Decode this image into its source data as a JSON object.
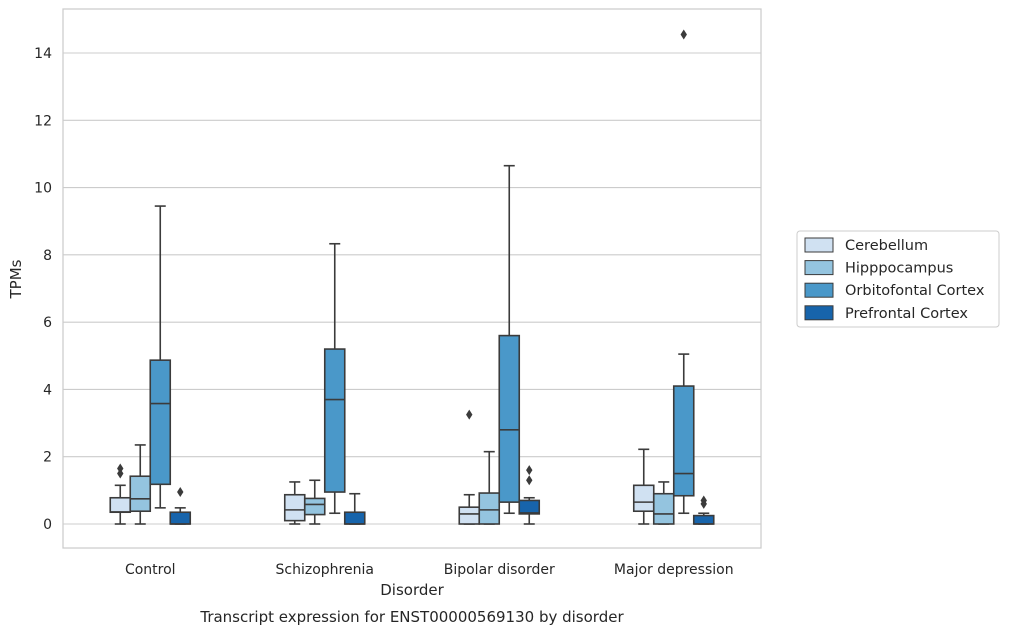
{
  "chart_data": {
    "type": "box",
    "title": "Transcript expression for ENST00000569130 by disorder",
    "xlabel": "Disorder",
    "ylabel": "TPMs",
    "ylim": [
      -0.7,
      15.3
    ],
    "yticks": [
      0,
      2,
      4,
      6,
      8,
      10,
      12,
      14
    ],
    "grid": true,
    "legend_position": "right",
    "categories": [
      "Control",
      "Schizophrenia",
      "Bipolar disorder",
      "Major depression"
    ],
    "series": [
      {
        "name": "Cerebellum",
        "color": "#d0e1f2",
        "boxes": [
          {
            "whislo": 0.0,
            "q1": 0.35,
            "med": 0.36,
            "q3": 0.78,
            "whishi": 1.15,
            "fliers": [
              1.5,
              1.65
            ]
          },
          {
            "whislo": 0.0,
            "q1": 0.1,
            "med": 0.42,
            "q3": 0.87,
            "whishi": 1.25,
            "fliers": []
          },
          {
            "whislo": 0.0,
            "q1": 0.0,
            "med": 0.3,
            "q3": 0.5,
            "whishi": 0.87,
            "fliers": [
              3.25
            ]
          },
          {
            "whislo": 0.0,
            "q1": 0.38,
            "med": 0.65,
            "q3": 1.15,
            "whishi": 2.22,
            "fliers": []
          }
        ]
      },
      {
        "name": "Hipppocampus",
        "color": "#94c4df",
        "boxes": [
          {
            "whislo": 0.0,
            "q1": 0.38,
            "med": 0.75,
            "q3": 1.42,
            "whishi": 2.35,
            "fliers": []
          },
          {
            "whislo": 0.0,
            "q1": 0.28,
            "med": 0.58,
            "q3": 0.76,
            "whishi": 1.3,
            "fliers": []
          },
          {
            "whislo": 0.0,
            "q1": 0.0,
            "med": 0.42,
            "q3": 0.92,
            "whishi": 2.15,
            "fliers": []
          },
          {
            "whislo": 0.0,
            "q1": 0.0,
            "med": 0.3,
            "q3": 0.9,
            "whishi": 1.25,
            "fliers": []
          }
        ]
      },
      {
        "name": "Orbitofontal Cortex",
        "color": "#4a98c9",
        "boxes": [
          {
            "whislo": 0.48,
            "q1": 1.18,
            "med": 3.58,
            "q3": 4.87,
            "whishi": 9.45,
            "fliers": []
          },
          {
            "whislo": 0.32,
            "q1": 0.95,
            "med": 3.7,
            "q3": 5.2,
            "whishi": 8.33,
            "fliers": []
          },
          {
            "whislo": 0.32,
            "q1": 0.65,
            "med": 2.8,
            "q3": 5.6,
            "whishi": 10.65,
            "fliers": []
          },
          {
            "whislo": 0.32,
            "q1": 0.84,
            "med": 1.5,
            "q3": 4.1,
            "whishi": 5.05,
            "fliers": [
              14.55
            ]
          }
        ]
      },
      {
        "name": "Prefrontal Cortex",
        "color": "#1764ab",
        "boxes": [
          {
            "whislo": 0.0,
            "q1": 0.0,
            "med": 0.0,
            "q3": 0.35,
            "whishi": 0.48,
            "fliers": [
              0.95
            ]
          },
          {
            "whislo": 0.0,
            "q1": 0.0,
            "med": 0.0,
            "q3": 0.35,
            "whishi": 0.9,
            "fliers": []
          },
          {
            "whislo": 0.0,
            "q1": 0.3,
            "med": 0.33,
            "q3": 0.7,
            "whishi": 0.78,
            "fliers": [
              1.3,
              1.6
            ]
          },
          {
            "whislo": 0.0,
            "q1": 0.0,
            "med": 0.0,
            "q3": 0.25,
            "whishi": 0.32,
            "fliers": [
              0.6,
              0.7
            ]
          }
        ]
      }
    ]
  }
}
